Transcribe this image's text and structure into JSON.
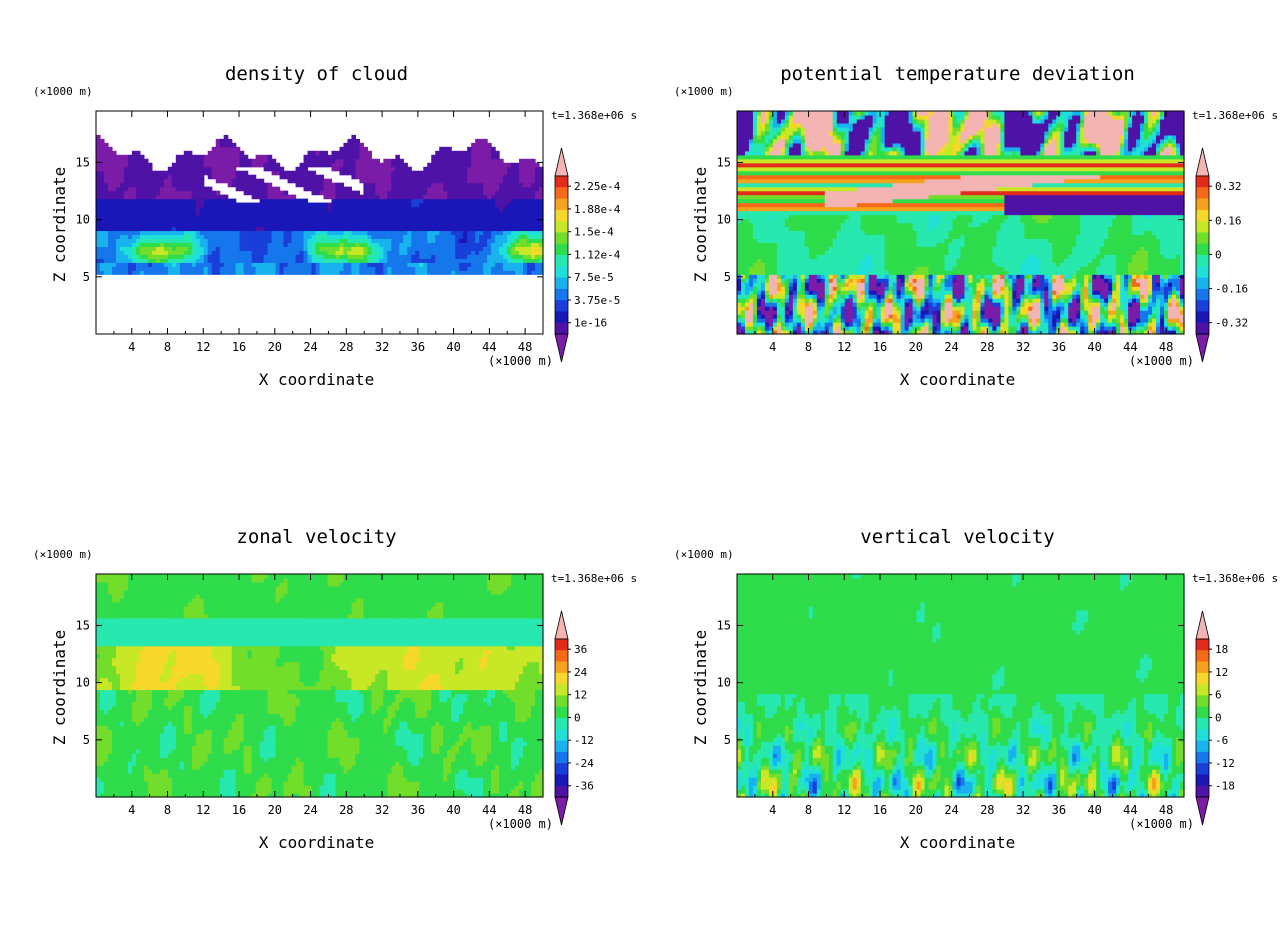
{
  "chart_data": [
    {
      "type": "heatmap",
      "title": "density of cloud",
      "time_label": "t=1.368e+06 s",
      "xlabel": "X coordinate",
      "ylabel": "Z coordinate",
      "x_unit": "(×1000 m)",
      "y_unit": "(×1000 m)",
      "x_ticks": [
        "4",
        "8",
        "12",
        "16",
        "20",
        "24",
        "28",
        "32",
        "36",
        "40",
        "44",
        "48"
      ],
      "y_ticks": [
        "5",
        "10",
        "15"
      ],
      "xlim": [
        0,
        50
      ],
      "ylim": [
        0,
        19.5
      ],
      "colorbar_labels": [
        "2.25e-4",
        "1.88e-4",
        "1.5e-4",
        "1.12e-4",
        "7.5e-5",
        "3.75e-5",
        "1e-16"
      ],
      "colorbar_values": [
        0.000225,
        0.000188,
        0.00015,
        0.000112,
        7.5e-05,
        3.75e-05,
        1e-16
      ],
      "field": "cloud"
    },
    {
      "type": "heatmap",
      "title": "potential temperature deviation",
      "time_label": "t=1.368e+06 s",
      "xlabel": "X coordinate",
      "ylabel": "Z coordinate",
      "x_unit": "(×1000 m)",
      "y_unit": "(×1000 m)",
      "x_ticks": [
        "4",
        "8",
        "12",
        "16",
        "20",
        "24",
        "28",
        "32",
        "36",
        "40",
        "44",
        "48"
      ],
      "y_ticks": [
        "5",
        "10",
        "15"
      ],
      "xlim": [
        0,
        50
      ],
      "ylim": [
        0,
        19.5
      ],
      "colorbar_labels": [
        "0.32",
        "0.16",
        "0",
        "-0.16",
        "-0.32"
      ],
      "colorbar_values": [
        0.32,
        0.16,
        0,
        -0.16,
        -0.32
      ],
      "field": "theta"
    },
    {
      "type": "heatmap",
      "title": "zonal velocity",
      "time_label": "t=1.368e+06 s",
      "xlabel": "X coordinate",
      "ylabel": "Z coordinate",
      "x_unit": "(×1000 m)",
      "y_unit": "(×1000 m)",
      "x_ticks": [
        "4",
        "8",
        "12",
        "16",
        "20",
        "24",
        "28",
        "32",
        "36",
        "40",
        "44",
        "48"
      ],
      "y_ticks": [
        "5",
        "10",
        "15"
      ],
      "xlim": [
        0,
        50
      ],
      "ylim": [
        0,
        19.5
      ],
      "colorbar_labels": [
        "36",
        "24",
        "12",
        "0",
        "-12",
        "-24",
        "-36"
      ],
      "colorbar_values": [
        36,
        24,
        12,
        0,
        -12,
        -24,
        -36
      ],
      "field": "u"
    },
    {
      "type": "heatmap",
      "title": "vertical velocity",
      "time_label": "t=1.368e+06 s",
      "xlabel": "X coordinate",
      "ylabel": "Z coordinate",
      "x_unit": "(×1000 m)",
      "y_unit": "(×1000 m)",
      "x_ticks": [
        "4",
        "8",
        "12",
        "16",
        "20",
        "24",
        "28",
        "32",
        "36",
        "40",
        "44",
        "48"
      ],
      "y_ticks": [
        "5",
        "10",
        "15"
      ],
      "xlim": [
        0,
        50
      ],
      "ylim": [
        0,
        19.5
      ],
      "colorbar_labels": [
        "18",
        "12",
        "6",
        "0",
        "-6",
        "-12",
        "-18"
      ],
      "colorbar_values": [
        18,
        12,
        6,
        0,
        -6,
        -12,
        -18
      ],
      "field": "w"
    }
  ]
}
